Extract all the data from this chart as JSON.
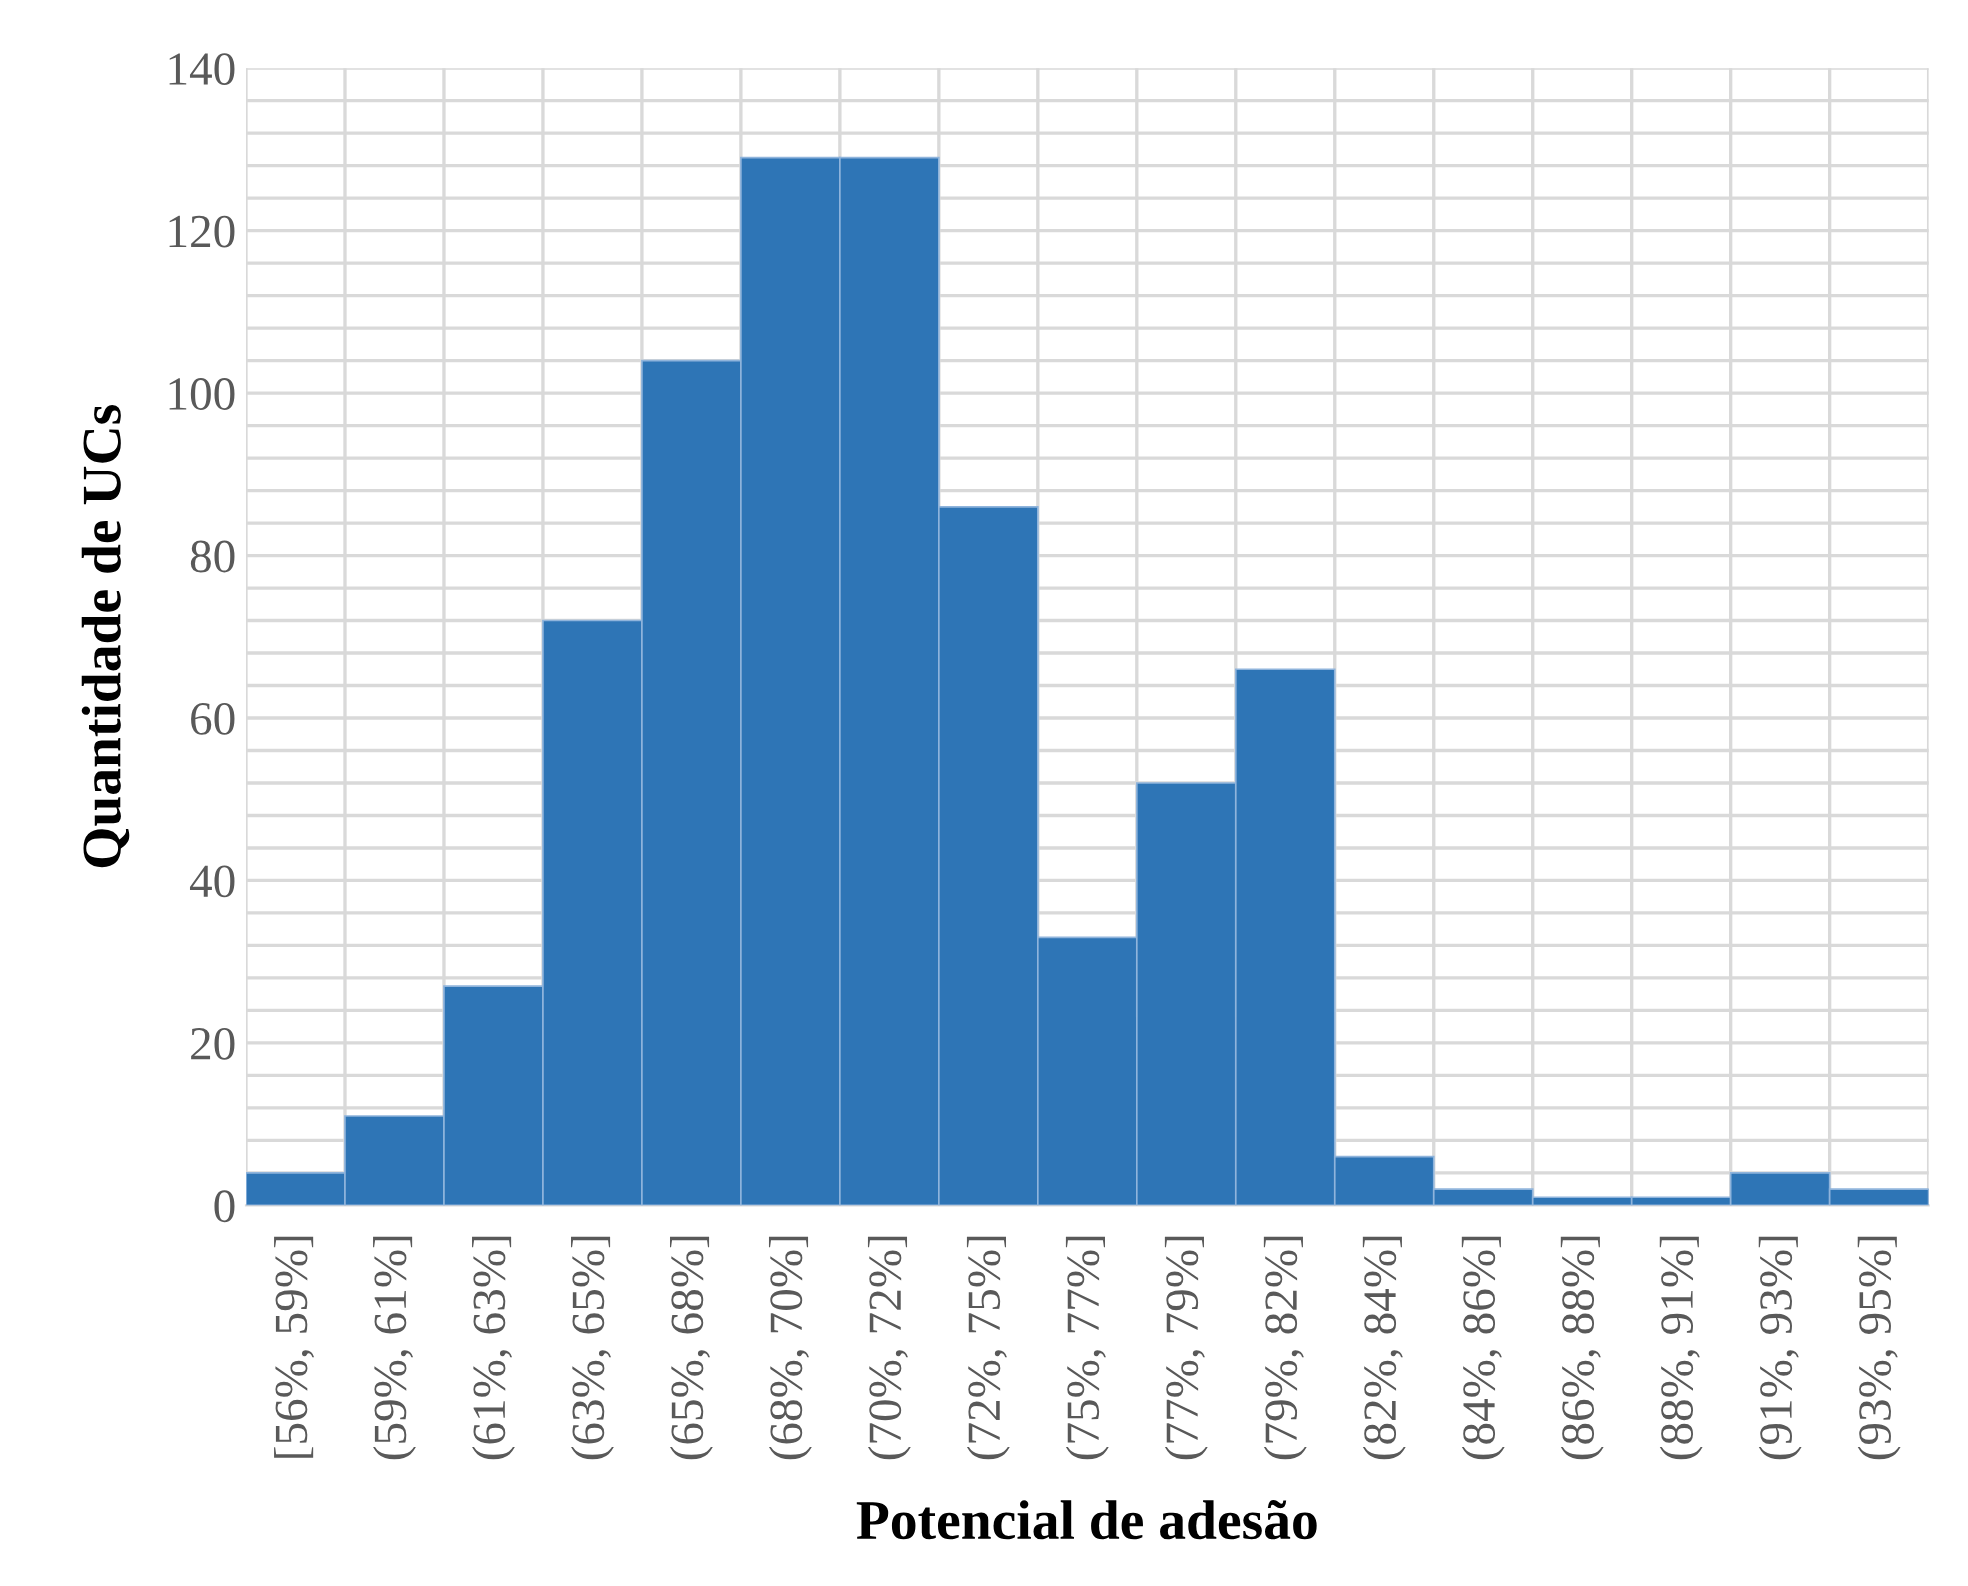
{
  "chart_data": {
    "type": "bar",
    "xlabel": "Potencial de adesão",
    "ylabel": "Quantidade de UCs",
    "categories": [
      "[56%, 59%]",
      "(59%, 61%]",
      "(61%, 63%]",
      "(63%, 65%]",
      "(65%, 68%]",
      "(68%, 70%]",
      "(70%, 72%]",
      "(72%, 75%]",
      "(75%, 77%]",
      "(77%, 79%]",
      "(79%, 82%]",
      "(82%, 84%]",
      "(84%, 86%]",
      "(86%, 88%]",
      "(88%, 91%]",
      "(91%, 93%]",
      "(93%, 95%]"
    ],
    "values": [
      4,
      11,
      27,
      72,
      104,
      129,
      129,
      86,
      33,
      52,
      66,
      6,
      2,
      1,
      1,
      4,
      2
    ],
    "color": "#2e75b6",
    "ylim": [
      0,
      140
    ],
    "yticks": [
      0,
      {
        "value": 4,
        "label": null
      },
      {
        "value": 8,
        "label": null
      },
      {
        "value": 12,
        "label": null
      },
      {
        "value": 16,
        "label": null
      },
      20,
      {
        "value": 24,
        "label": null
      },
      {
        "value": 28,
        "label": null
      },
      {
        "value": 32,
        "label": null
      },
      {
        "value": 36,
        "label": null
      },
      40,
      {
        "value": 44,
        "label": null
      },
      {
        "value": 48,
        "label": null
      },
      {
        "value": 52,
        "label": null
      },
      {
        "value": 56,
        "label": null
      },
      60,
      {
        "value": 64,
        "label": null
      },
      {
        "value": 68,
        "label": null
      },
      {
        "value": 72,
        "label": null
      },
      {
        "value": 76,
        "label": null
      },
      80,
      {
        "value": 84,
        "label": null
      },
      {
        "value": 88,
        "label": null
      },
      {
        "value": 92,
        "label": null
      },
      {
        "value": 96,
        "label": null
      },
      100,
      {
        "value": 104,
        "label": null
      },
      {
        "value": 108,
        "label": null
      },
      {
        "value": 112,
        "label": null
      },
      {
        "value": 116,
        "label": null
      },
      120,
      {
        "value": 124,
        "label": null
      },
      {
        "value": 128,
        "label": null
      },
      {
        "value": 132,
        "label": null
      },
      {
        "value": 136,
        "label": null
      },
      140
    ],
    "grid": true
  }
}
